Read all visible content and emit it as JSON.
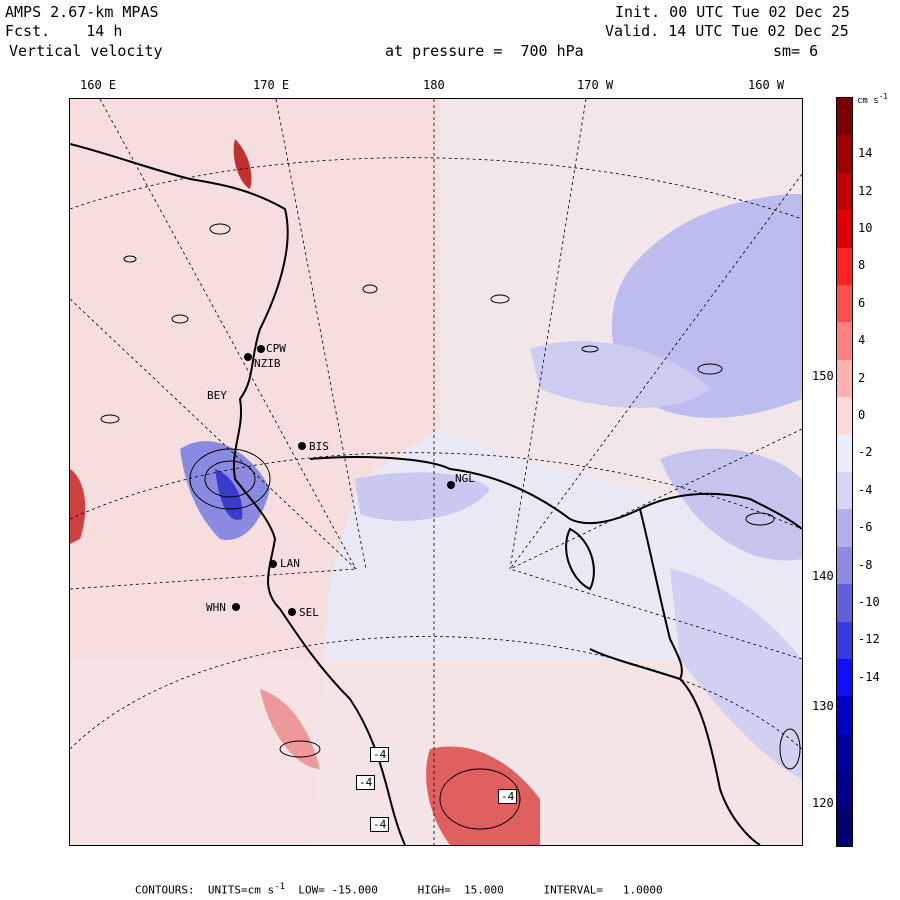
{
  "header": {
    "model": "AMPS 2.67-km MPAS",
    "forecast": "Fcst.    14 h",
    "init": "Init. 00 UTC Tue 02 Dec 25",
    "valid": "Valid. 14 UTC Tue 02 Dec 25",
    "variable": "Vertical velocity",
    "level": "at pressure =  700 hPa",
    "smoothing": "sm= 6"
  },
  "longitude_labels": [
    "160 E",
    "170 E",
    "180",
    "170 W",
    "160 W"
  ],
  "latitude_labels": [
    "150 W",
    "140 W",
    "130 W",
    "120 W"
  ],
  "stations": [
    "CPW",
    "NZIB",
    "BEY",
    "BIS",
    "NGL",
    "LAN",
    "WHN",
    "SEL"
  ],
  "contour_boxes": [
    "-4",
    "-4",
    "-4",
    "-4"
  ],
  "colorbar": {
    "units": "cm s",
    "units_exp": "-1",
    "ticks": [
      "14",
      "12",
      "10",
      "8",
      "6",
      "4",
      "2",
      "0",
      "-2",
      "-4",
      "-6",
      "-8",
      "-10",
      "-12",
      "-14"
    ],
    "colors": [
      "#7a0000",
      "#a00000",
      "#c00000",
      "#e00000",
      "#ff2020",
      "#ff5050",
      "#ff8080",
      "#ffb0b0",
      "#ffd8d8",
      "#ececff",
      "#d6d6f6",
      "#b0b0ee",
      "#8c8ce4",
      "#6060d8",
      "#3838e8",
      "#1010ff",
      "#0000c8",
      "#0000a0",
      "#00008a",
      "#000070"
    ]
  },
  "footer": {
    "contours": "CONTOURS:",
    "units_label": "UNITS=cm s",
    "units_exp": "-1",
    "low": "LOW= -15.000",
    "high": "HIGH=  15.000",
    "interval": "INTERVAL=   1.0000"
  }
}
